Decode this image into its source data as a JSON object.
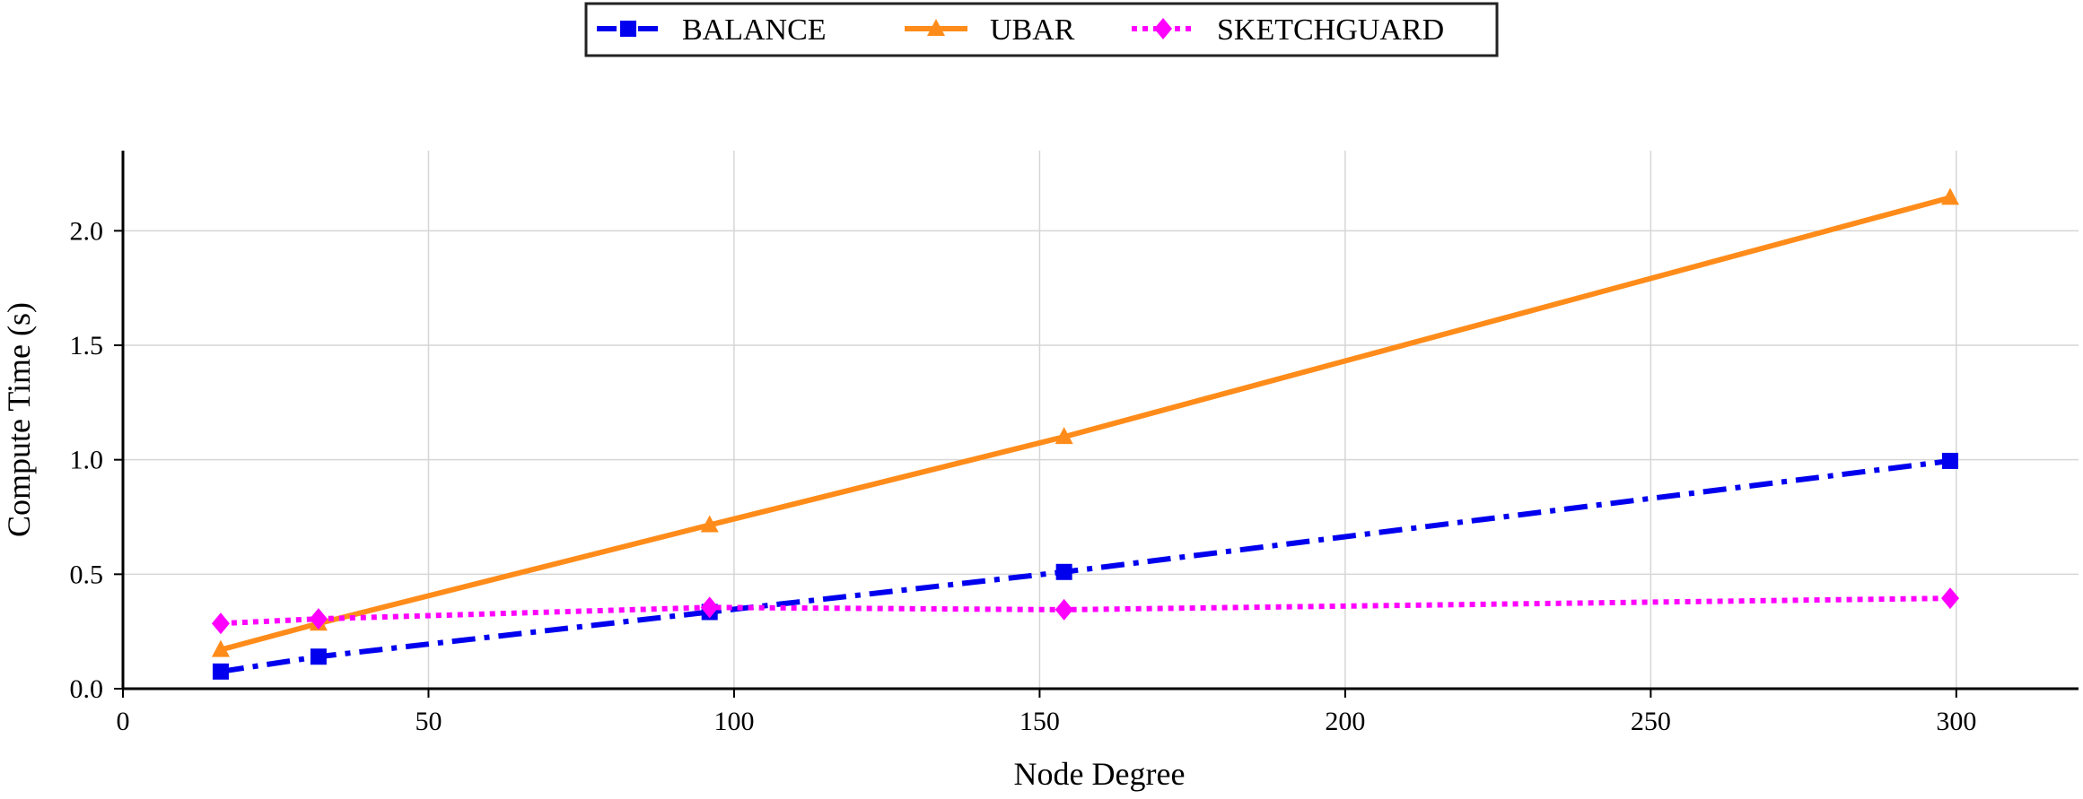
{
  "chart_data": {
    "type": "line",
    "title": "",
    "xlabel": "Node Degree",
    "ylabel": "Compute Time (s)",
    "xlim": [
      0,
      320
    ],
    "ylim": [
      0,
      2.35
    ],
    "xticks": [
      0,
      50,
      100,
      150,
      200,
      250,
      300
    ],
    "yticks": [
      0.0,
      0.5,
      1.0,
      1.5,
      2.0
    ],
    "xtick_labels": [
      "0",
      "50",
      "100",
      "150",
      "200",
      "250",
      "300"
    ],
    "ytick_labels": [
      "0.0",
      "0.5",
      "1.0",
      "1.5",
      "2.0"
    ],
    "grid": true,
    "legend_position": "top-center",
    "series": [
      {
        "name": "BALANCE",
        "color": "#0000ee",
        "line_style": "dash-dot",
        "marker": "square",
        "x": [
          16,
          32,
          96,
          154,
          299
        ],
        "y": [
          0.075,
          0.14,
          0.335,
          0.51,
          0.995
        ]
      },
      {
        "name": "UBAR",
        "color": "#ff8c1a",
        "line_style": "solid",
        "marker": "triangle",
        "x": [
          16,
          32,
          96,
          154,
          299
        ],
        "y": [
          0.17,
          0.285,
          0.715,
          1.1,
          2.145
        ]
      },
      {
        "name": "SKETCHGUARD",
        "color": "#ff00ff",
        "line_style": "dotted",
        "marker": "diamond",
        "x": [
          16,
          32,
          96,
          154,
          299
        ],
        "y": [
          0.285,
          0.305,
          0.355,
          0.345,
          0.395
        ]
      }
    ]
  }
}
